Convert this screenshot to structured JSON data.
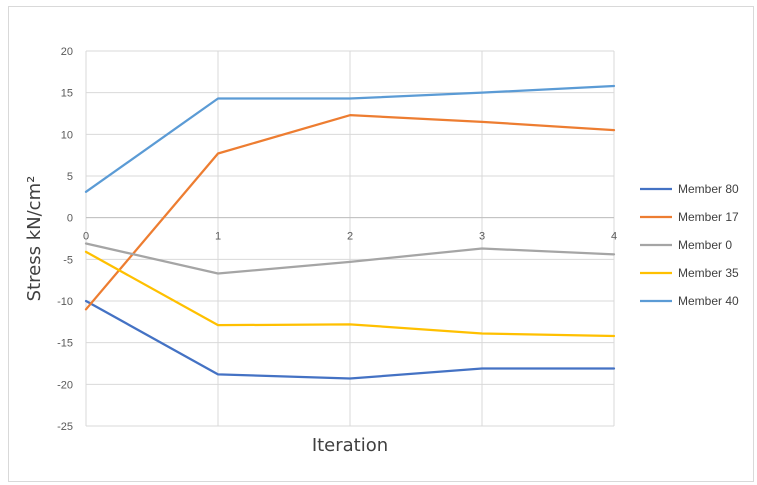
{
  "chart_data": {
    "type": "line",
    "title": "",
    "xlabel": "Iteration",
    "ylabel": "Stress kN/cm²",
    "x": [
      0,
      1,
      2,
      3,
      4
    ],
    "xlim": [
      0,
      4
    ],
    "ylim": [
      -25,
      20
    ],
    "yticks": [
      20,
      15,
      10,
      5,
      0,
      -5,
      -10,
      -15,
      -20,
      -25
    ],
    "grid": true,
    "legend_position": "right",
    "series": [
      {
        "name": "Member 80",
        "color": "#4472C4",
        "values": [
          -10.0,
          -18.8,
          -19.3,
          -18.1,
          -18.1
        ]
      },
      {
        "name": "Member 17",
        "color": "#ED7D31",
        "values": [
          -11.0,
          7.7,
          12.3,
          11.5,
          10.5
        ]
      },
      {
        "name": "Member 0",
        "color": "#A5A5A5",
        "values": [
          -3.1,
          -6.7,
          -5.3,
          -3.7,
          -4.4
        ]
      },
      {
        "name": "Member 35",
        "color": "#FFC000",
        "values": [
          -4.1,
          -12.9,
          -12.8,
          -13.9,
          -14.2
        ]
      },
      {
        "name": "Member 40",
        "color": "#5B9BD5",
        "values": [
          3.1,
          14.3,
          14.3,
          15.0,
          15.8
        ]
      }
    ]
  }
}
